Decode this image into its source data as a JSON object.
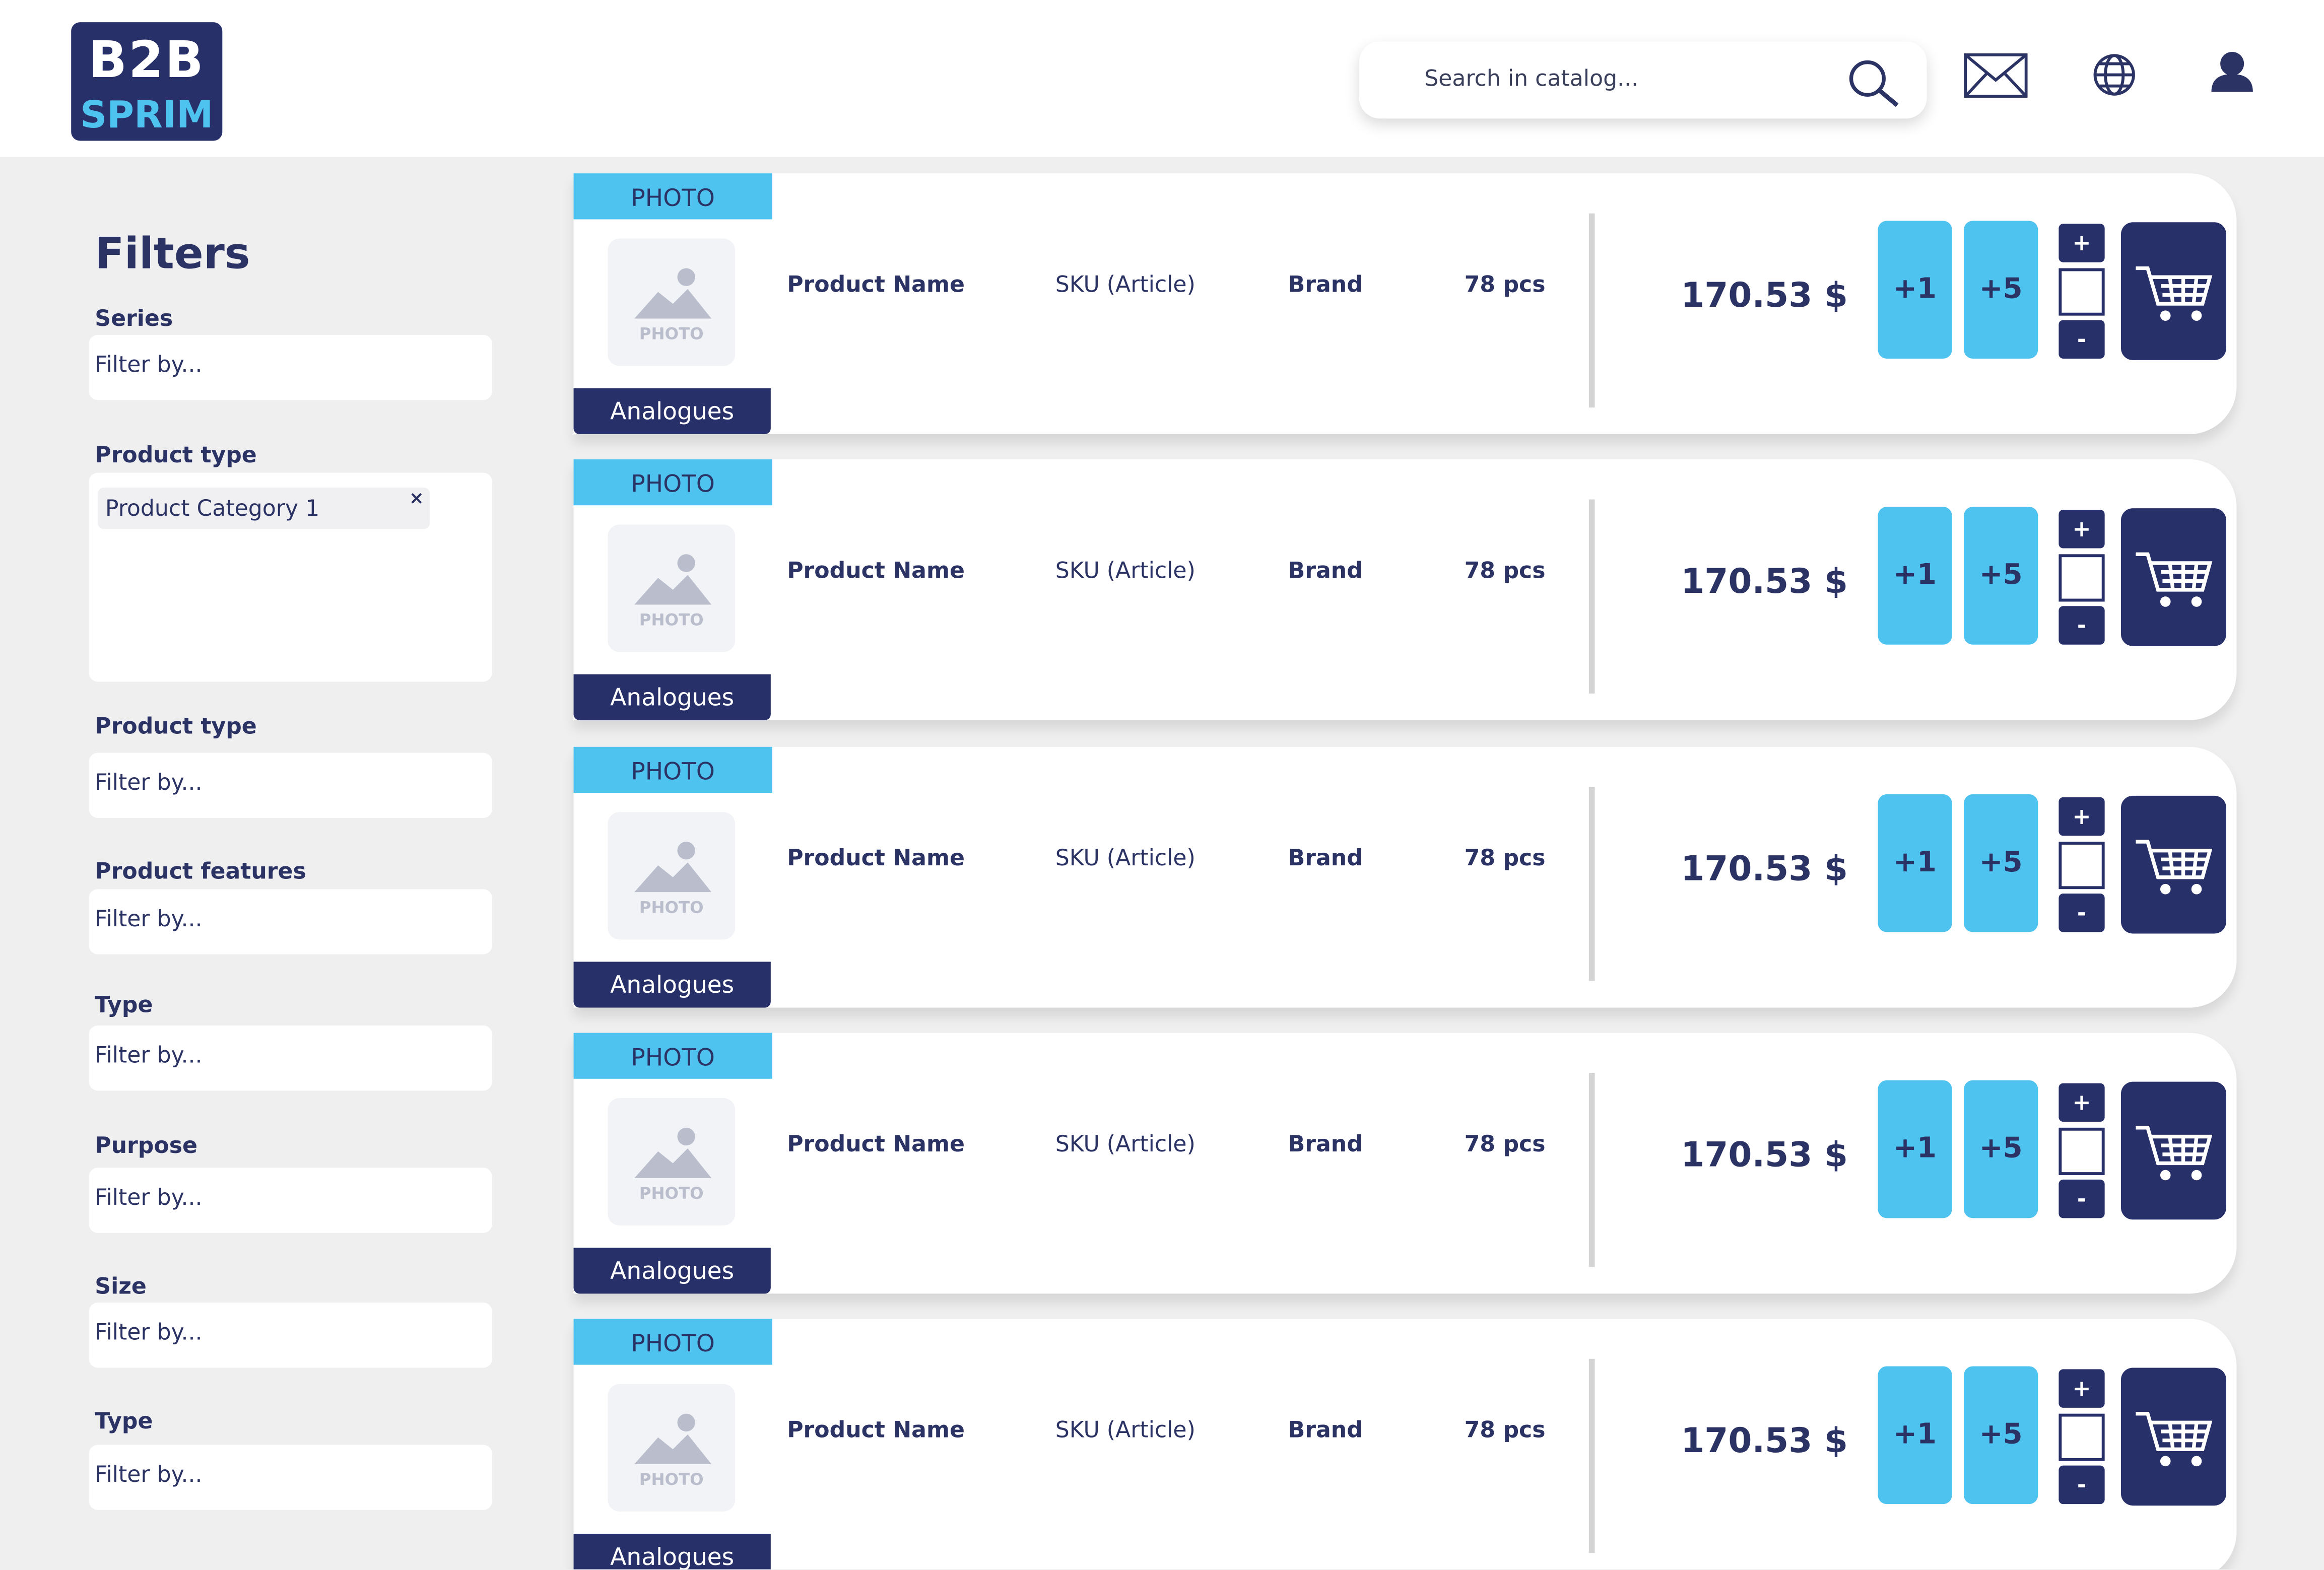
{
  "header": {
    "logo_top": "B2B",
    "logo_bottom": "SPRIM",
    "search_placeholder": "Search in catalog..."
  },
  "filters": {
    "title": "Filters",
    "groups": [
      {
        "label": "Series",
        "placeholder": "Filter by..."
      },
      {
        "label": "Product type",
        "tags": [
          "Product Category 1"
        ],
        "remove": "×"
      },
      {
        "label": "Product type",
        "placeholder": "Filter by..."
      },
      {
        "label": "Product features",
        "placeholder": "Filter by..."
      },
      {
        "label": "Type",
        "placeholder": "Filter by..."
      },
      {
        "label": "Purpose",
        "placeholder": "Filter by..."
      },
      {
        "label": "Size",
        "placeholder": "Filter by..."
      },
      {
        "label": "Type",
        "placeholder": "Filter by..."
      }
    ]
  },
  "products": [
    {
      "photo_tab": "PHOTO",
      "image_placeholder": "PHOTO",
      "analogues": "Analogues",
      "name": "Product Name",
      "sku": "SKU (Article)",
      "brand": "Brand",
      "quantity": "78 pcs",
      "price": "170.53 $",
      "add_one": "+1",
      "add_five": "+5",
      "increment": "+",
      "decrement": "-"
    },
    {
      "photo_tab": "PHOTO",
      "image_placeholder": "PHOTO",
      "analogues": "Analogues",
      "name": "Product Name",
      "sku": "SKU (Article)",
      "brand": "Brand",
      "quantity": "78 pcs",
      "price": "170.53 $",
      "add_one": "+1",
      "add_five": "+5",
      "increment": "+",
      "decrement": "-"
    },
    {
      "photo_tab": "PHOTO",
      "image_placeholder": "PHOTO",
      "analogues": "Analogues",
      "name": "Product Name",
      "sku": "SKU (Article)",
      "brand": "Brand",
      "quantity": "78 pcs",
      "price": "170.53 $",
      "add_one": "+1",
      "add_five": "+5",
      "increment": "+",
      "decrement": "-"
    },
    {
      "photo_tab": "PHOTO",
      "image_placeholder": "PHOTO",
      "analogues": "Analogues",
      "name": "Product Name",
      "sku": "SKU (Article)",
      "brand": "Brand",
      "quantity": "78 pcs",
      "price": "170.53 $",
      "add_one": "+1",
      "add_five": "+5",
      "increment": "+",
      "decrement": "-"
    },
    {
      "photo_tab": "PHOTO",
      "image_placeholder": "PHOTO",
      "analogues": "Analogues",
      "name": "Product Name",
      "sku": "SKU (Article)",
      "brand": "Brand",
      "quantity": "78 pcs",
      "price": "170.53 $",
      "add_one": "+1",
      "add_five": "+5",
      "increment": "+",
      "decrement": "-"
    }
  ]
}
